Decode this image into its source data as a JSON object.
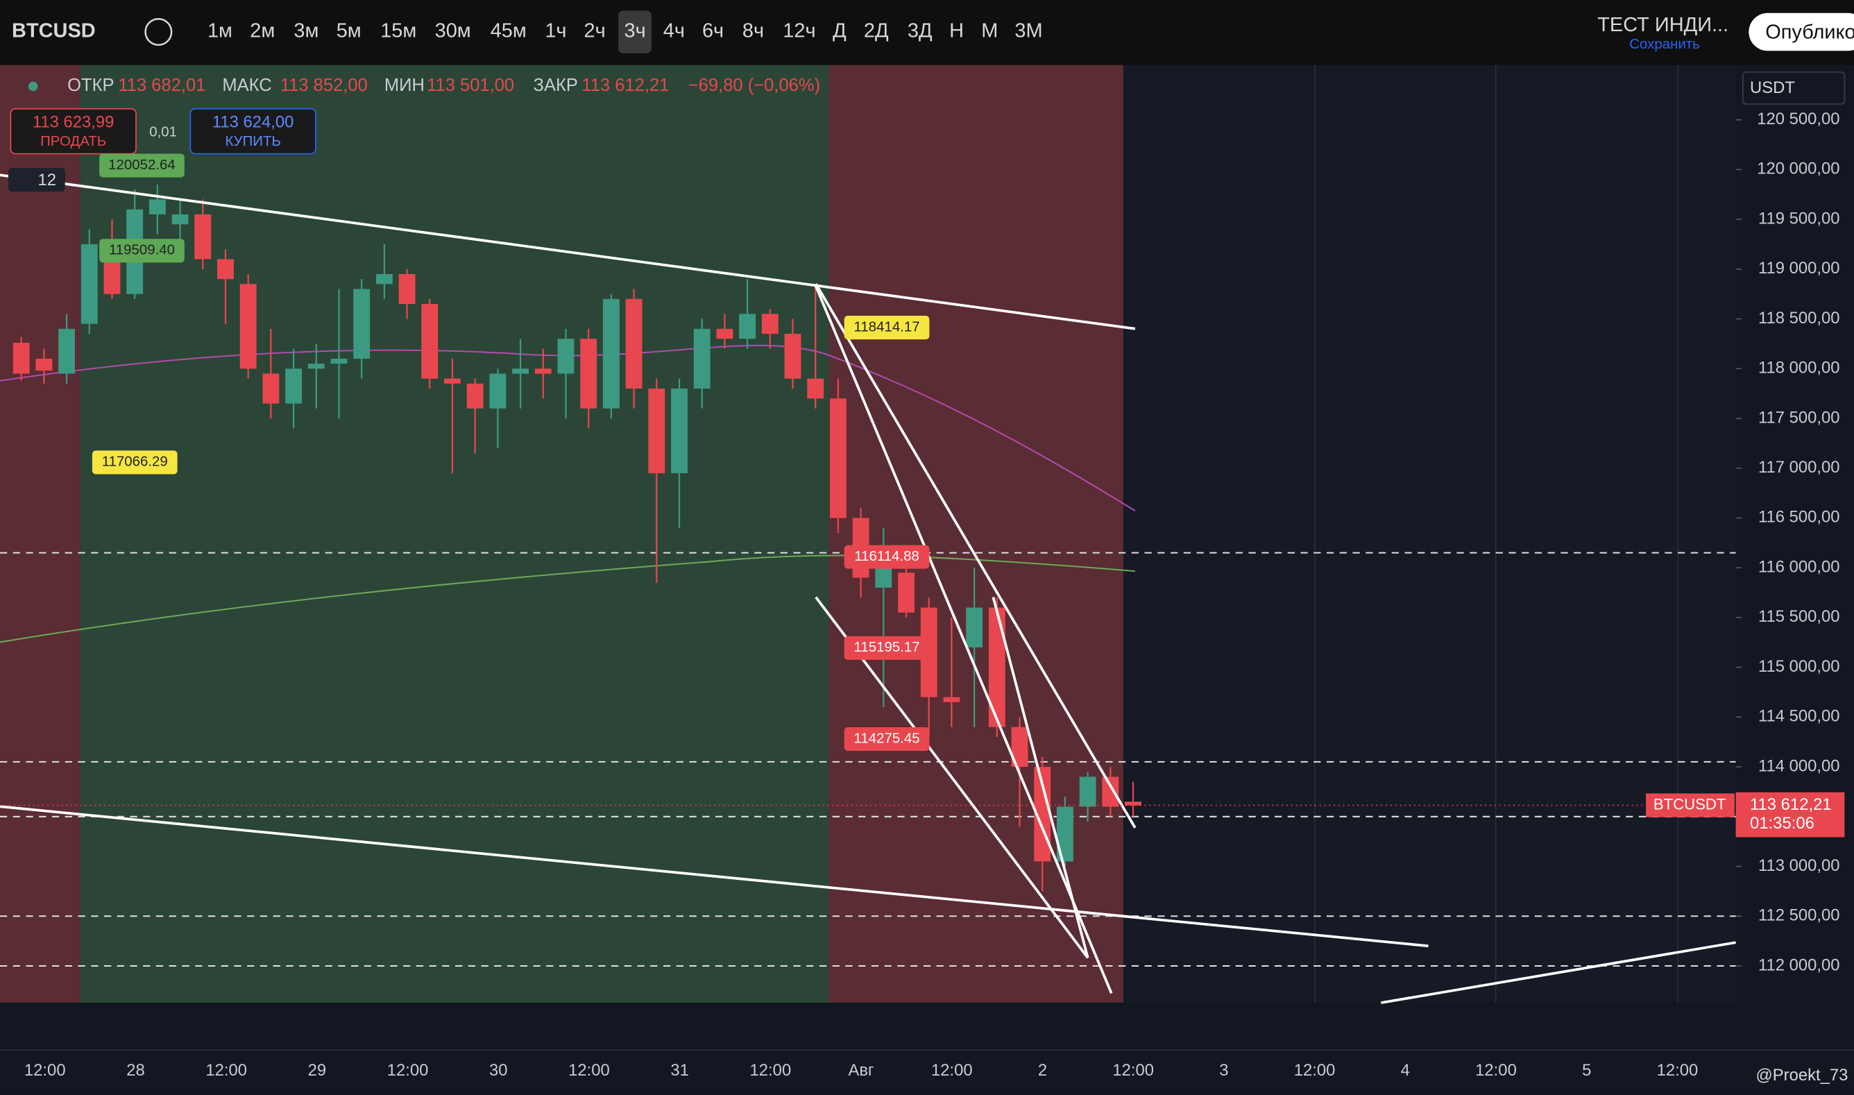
{
  "toolbar": {
    "symbol": "BTCUSD",
    "intervals": [
      "1м",
      "2м",
      "3м",
      "5м",
      "15м",
      "30м",
      "45м",
      "1ч",
      "2ч",
      "3ч",
      "4ч",
      "6ч",
      "8ч",
      "12ч",
      "Д",
      "2Д",
      "3Д",
      "Н",
      "М",
      "3М"
    ],
    "layout_name": "ТЕСТ ИНДИ...",
    "save": "Сохранить",
    "publish": "Опублико"
  },
  "legend": {
    "open_label": "ОТКР",
    "open": "113 682,01",
    "high_label": "МАКС",
    "high": "113 852,00",
    "low_label": "МИН",
    "low": "113 501,00",
    "close_label": "ЗАКР",
    "close": "113 612,21",
    "change": "−69,80 (−0,06%)"
  },
  "trade": {
    "sell_price": "113 623,99",
    "sell": "ПРОДАТЬ",
    "spread": "0,01",
    "buy_price": "113 624,00",
    "buy": "КУПИТЬ",
    "count": "12"
  },
  "currency": "USDT",
  "annotations": [
    "120052.64",
    "119509.40",
    "117066.29",
    "118414.17",
    "116114.88",
    "115195.17",
    "114275.45"
  ],
  "last_price": {
    "symbol": "BTCUSDT",
    "price": "113 612,21",
    "timer": "01:35:06"
  },
  "time_labels": [
    "12:00",
    "28",
    "12:00",
    "29",
    "12:00",
    "30",
    "12:00",
    "31",
    "12:00",
    "Авг",
    "12:00",
    "2",
    "12:00",
    "3",
    "12:00",
    "4",
    "12:00",
    "5",
    "12:00"
  ],
  "watermark": "@Proekt_73",
  "chart_data": {
    "type": "candlestick",
    "up_color": "#3d9a82",
    "down_color": "#e9474f",
    "ylim": [
      111630,
      121050
    ],
    "yticks": [
      {
        "value": 120500,
        "label": "120 500,00"
      },
      {
        "value": 120000,
        "label": "120 000,00"
      },
      {
        "value": 119500,
        "label": "119 500,00"
      },
      {
        "value": 119000,
        "label": "119 000,00"
      },
      {
        "value": 118500,
        "label": "118 500,00"
      },
      {
        "value": 118000,
        "label": "118 000,00"
      },
      {
        "value": 117500,
        "label": "117 500,00"
      },
      {
        "value": 117000,
        "label": "117 000,00"
      },
      {
        "value": 116500,
        "label": "116 500,00"
      },
      {
        "value": 116000,
        "label": "116 000,00"
      },
      {
        "value": 115500,
        "label": "115 500,00"
      },
      {
        "value": 115000,
        "label": "115 000,00"
      },
      {
        "value": 114500,
        "label": "114 500,00"
      },
      {
        "value": 114000,
        "label": "114 000,00"
      },
      {
        "value": 113500,
        "label": "113 500,00"
      },
      {
        "value": 113000,
        "label": "113 000,00"
      },
      {
        "value": 112500,
        "label": "112 500,00"
      },
      {
        "value": 112000,
        "label": "112 000,00"
      }
    ],
    "hlines": [
      116150,
      114050,
      113500,
      112500,
      112000
    ],
    "last": 113612,
    "open": [
      118260,
      118100,
      117950,
      118450,
      119250,
      118750,
      119550,
      119450,
      119550,
      119100,
      118850,
      117950,
      117650,
      118000,
      118050,
      118100,
      118850,
      118950,
      118650,
      117900,
      117850,
      117600,
      117950,
      118000,
      117950,
      118300,
      117600,
      118700,
      117800,
      116950,
      117800,
      118400,
      118300,
      118550,
      118350,
      117900,
      117700,
      116500,
      115800,
      115950,
      115600,
      114700,
      115200,
      115600,
      114400,
      114000,
      113050,
      113600,
      113900,
      113650
    ],
    "high": [
      118320,
      118200,
      118550,
      119400,
      119500,
      119800,
      119850,
      119700,
      119700,
      119200,
      118950,
      118400,
      118200,
      118250,
      118800,
      118900,
      119250,
      119000,
      118700,
      118100,
      117900,
      118000,
      118300,
      118200,
      118400,
      118400,
      118750,
      118800,
      117900,
      117900,
      118500,
      118550,
      118900,
      118600,
      118500,
      118850,
      117900,
      116600,
      116400,
      116200,
      115700,
      115500,
      116000,
      115700,
      114500,
      114100,
      113700,
      113950,
      114000,
      113850
    ],
    "low": [
      117880,
      117850,
      117850,
      118350,
      118700,
      118700,
      119350,
      119300,
      119000,
      118450,
      117900,
      117500,
      117400,
      117600,
      117500,
      117900,
      118700,
      118500,
      117800,
      116950,
      117150,
      117200,
      117600,
      117700,
      117500,
      117400,
      117500,
      117600,
      115850,
      116400,
      117600,
      118200,
      118200,
      118200,
      117800,
      117600,
      116350,
      115700,
      114600,
      115500,
      114300,
      114400,
      114400,
      114300,
      113400,
      112750,
      113000,
      113450,
      113500,
      113500
    ],
    "close": [
      117950,
      117980,
      118400,
      119250,
      118750,
      119600,
      119700,
      119550,
      119100,
      118900,
      118000,
      117650,
      118000,
      118050,
      118100,
      118800,
      118950,
      118650,
      117900,
      117850,
      117600,
      117950,
      118000,
      117950,
      118300,
      117600,
      118700,
      117800,
      116950,
      117800,
      118400,
      118300,
      118550,
      118350,
      117900,
      117700,
      116500,
      115900,
      116100,
      115550,
      114700,
      114650,
      115600,
      114400,
      114000,
      113050,
      113600,
      113900,
      113600,
      113612
    ]
  }
}
